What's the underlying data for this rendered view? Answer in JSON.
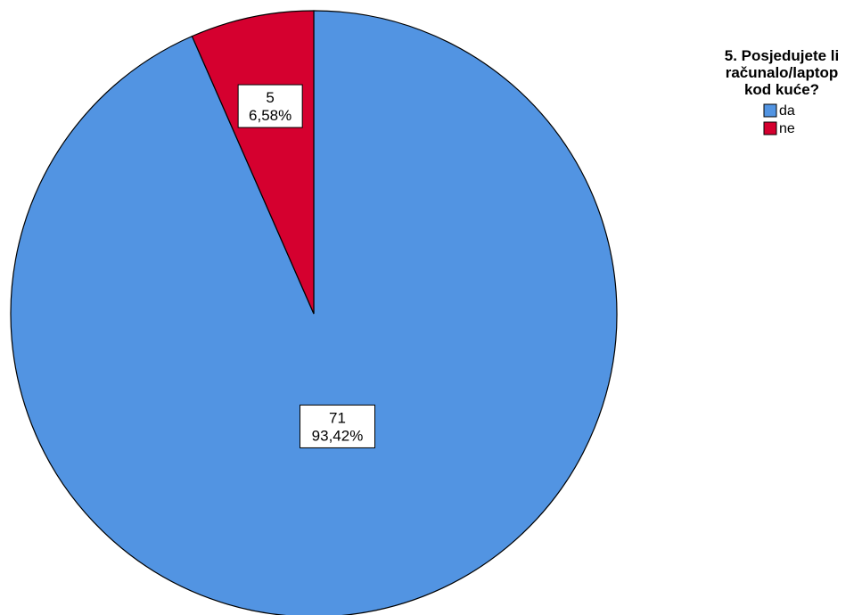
{
  "chart_data": {
    "type": "pie",
    "title": "",
    "legend": {
      "title_lines": [
        "5. Posjedujete li",
        "računalo/laptop",
        "kod kuće?"
      ],
      "placement": "top-right"
    },
    "categories": [
      "da",
      "ne"
    ],
    "values": [
      71,
      5
    ],
    "percent_labels": [
      "93,42%",
      "6,58%"
    ],
    "colors": [
      "#5294E2",
      "#D5002F"
    ],
    "count_labels": [
      "71",
      "5"
    ]
  }
}
